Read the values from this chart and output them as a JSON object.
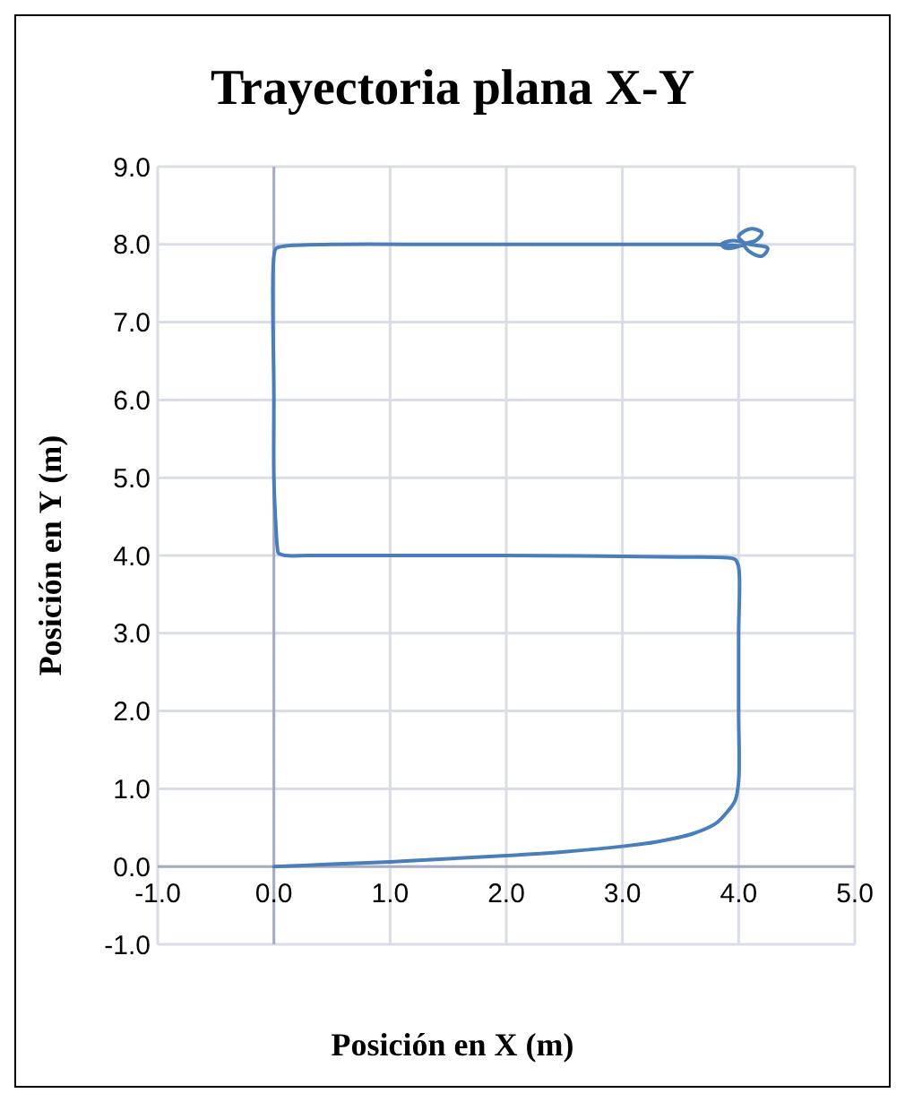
{
  "chart_data": {
    "type": "line",
    "title": "Trayectoria plana X-Y",
    "xlabel": "Posición en X (m)",
    "ylabel": "Posición en Y (m)",
    "series": [
      {
        "color": "#4a7ebb",
        "x": [
          0,
          0.5,
          1,
          1.5,
          2,
          2.5,
          3,
          3.3,
          3.6,
          3.8,
          3.9,
          3.97,
          4,
          4,
          4,
          4,
          3.97,
          3.9,
          3.5,
          2,
          1,
          0.3,
          0.1,
          0.04,
          0.03,
          0.02,
          0,
          0,
          0,
          0.02,
          0.1,
          0.5,
          1.5,
          2.5,
          3.5,
          3.8,
          4.05,
          4.0,
          4.1,
          4.2,
          4.15,
          4.05,
          4.1,
          4.2,
          4.25,
          4.1,
          3.95,
          3.85,
          3.9,
          4.05
        ],
        "values": [
          0,
          0.03,
          0.06,
          0.1,
          0.14,
          0.19,
          0.26,
          0.32,
          0.42,
          0.55,
          0.7,
          0.85,
          1.1,
          2,
          3,
          3.85,
          3.95,
          3.97,
          3.98,
          4,
          4,
          4,
          4,
          4.03,
          4.1,
          4.3,
          5,
          6,
          7.85,
          7.95,
          7.98,
          8,
          8,
          8,
          8,
          8,
          8,
          8.1,
          8.2,
          8.15,
          8.05,
          8,
          7.9,
          7.85,
          7.95,
          8,
          8.05,
          8,
          7.95,
          8
        ]
      }
    ],
    "xlim": [
      -1,
      5
    ],
    "ylim": [
      -1,
      9
    ],
    "xticks": [
      {
        "value": -1,
        "label": "-1.0"
      },
      {
        "value": 0,
        "label": "0.0"
      },
      {
        "value": 1,
        "label": "1.0"
      },
      {
        "value": 2,
        "label": "2.0"
      },
      {
        "value": 3,
        "label": "3.0"
      },
      {
        "value": 4,
        "label": "4.0"
      },
      {
        "value": 5,
        "label": "5.0"
      }
    ],
    "yticks": [
      {
        "value": -1,
        "label": "-1.0"
      },
      {
        "value": 0,
        "label": "0.0"
      },
      {
        "value": 1,
        "label": "1.0"
      },
      {
        "value": 2,
        "label": "2.0"
      },
      {
        "value": 3,
        "label": "3.0"
      },
      {
        "value": 4,
        "label": "4.0"
      },
      {
        "value": 5,
        "label": "5.0"
      },
      {
        "value": 6,
        "label": "6.0"
      },
      {
        "value": 7,
        "label": "7.0"
      },
      {
        "value": 8,
        "label": "8.0"
      },
      {
        "value": 9,
        "label": "9.0"
      }
    ],
    "grid": true,
    "marker": "none",
    "line_style": "solid"
  }
}
